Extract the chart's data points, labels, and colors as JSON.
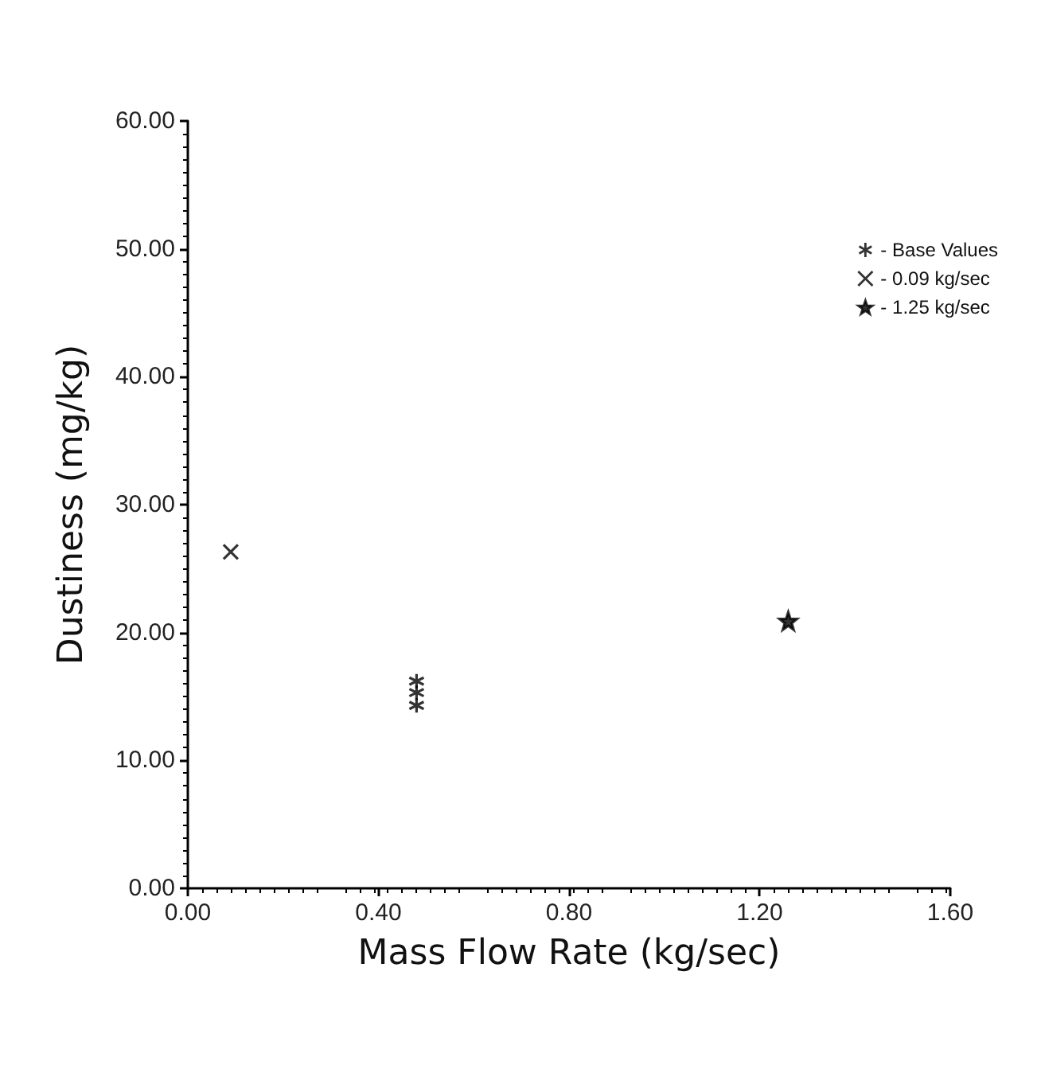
{
  "chart_data": {
    "type": "scatter",
    "xlabel": "Mass Flow Rate (kg/sec)",
    "ylabel": "Dustiness (mg/kg)",
    "xlim": [
      0,
      1.6
    ],
    "ylim": [
      0,
      60
    ],
    "xticks": [
      {
        "value": 0,
        "label": "0.00"
      },
      {
        "value": 0.4,
        "label": "0.40"
      },
      {
        "value": 0.8,
        "label": "0.80"
      },
      {
        "value": 1.2,
        "label": "1.20"
      },
      {
        "value": 1.6,
        "label": "1.60"
      }
    ],
    "yticks": [
      {
        "value": 0,
        "label": "0.00"
      },
      {
        "value": 10,
        "label": "10.00"
      },
      {
        "value": 20,
        "label": "20.00"
      },
      {
        "value": 30,
        "label": "30.00"
      },
      {
        "value": 40,
        "label": "40.00"
      },
      {
        "value": 50,
        "label": "50.00"
      },
      {
        "value": 60,
        "label": "60.00"
      }
    ],
    "grid": false,
    "legend": "top right",
    "series": [
      {
        "name": "- Base Values",
        "color": "#000000",
        "x": [
          0.48,
          0.48,
          0.48
        ],
        "values": [
          16.2,
          15.3,
          14.3
        ]
      },
      {
        "name": "- 0.09 kg/sec",
        "color": "#000000",
        "marker": "cross",
        "x": [
          0.09
        ],
        "values": [
          26.3
        ]
      },
      {
        "name": "- 1.25 kg/sec",
        "color": "#000000",
        "marker": "star",
        "x": [
          1.26
        ],
        "values": [
          20.9
        ]
      }
    ]
  }
}
